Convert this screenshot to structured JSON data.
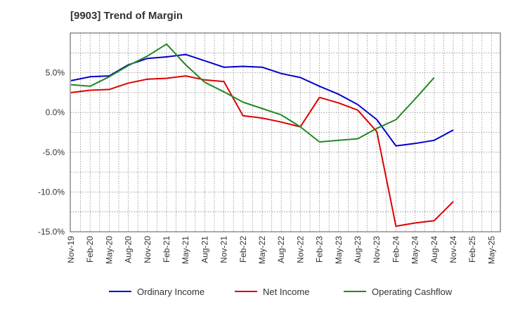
{
  "chart_data": {
    "type": "line",
    "title": "[9903]  Trend of Margin",
    "xlabel": "",
    "ylabel": "",
    "ylim": [
      -15,
      10
    ],
    "grid": true,
    "legend_position": "bottom",
    "y_ticks": [
      {
        "value": 5,
        "label": "5.0%"
      },
      {
        "value": 0,
        "label": "0.0%"
      },
      {
        "value": -5,
        "label": "-5.0%"
      },
      {
        "value": -10,
        "label": "-10.0%"
      },
      {
        "value": -15,
        "label": "-15.0%"
      }
    ],
    "categories": [
      "Nov-19",
      "Feb-20",
      "May-20",
      "Aug-20",
      "Nov-20",
      "Feb-21",
      "May-21",
      "Aug-21",
      "Nov-21",
      "Feb-22",
      "May-22",
      "Aug-22",
      "Nov-22",
      "Feb-23",
      "May-23",
      "Aug-23",
      "Nov-23",
      "Feb-24",
      "May-24",
      "Aug-24",
      "Nov-24",
      "Feb-25",
      "May-25"
    ],
    "series": [
      {
        "name": "Ordinary Income",
        "color": "#0000cc",
        "values": [
          4.0,
          4.5,
          4.6,
          6.0,
          6.8,
          7.0,
          7.3,
          6.5,
          5.7,
          5.8,
          5.7,
          4.9,
          4.4,
          3.3,
          2.3,
          1.0,
          -0.9,
          -4.2,
          -3.9,
          -3.5,
          -2.2,
          null,
          null
        ]
      },
      {
        "name": "Net Income",
        "color": "#dd0000",
        "values": [
          2.5,
          2.8,
          2.9,
          3.7,
          4.2,
          4.3,
          4.6,
          4.1,
          3.9,
          -0.4,
          -0.7,
          -1.2,
          -1.8,
          1.9,
          1.2,
          0.3,
          -2.4,
          -14.3,
          -13.9,
          -13.6,
          -11.2,
          null,
          null
        ]
      },
      {
        "name": "Operating Cashflow",
        "color": "#228822",
        "values": [
          3.5,
          3.3,
          4.5,
          5.9,
          7.1,
          8.6,
          6.0,
          3.8,
          2.6,
          1.3,
          0.5,
          -0.3,
          -1.8,
          -3.7,
          -3.5,
          -3.3,
          -2.0,
          -0.9,
          1.7,
          4.4,
          null,
          null,
          null
        ]
      }
    ]
  }
}
